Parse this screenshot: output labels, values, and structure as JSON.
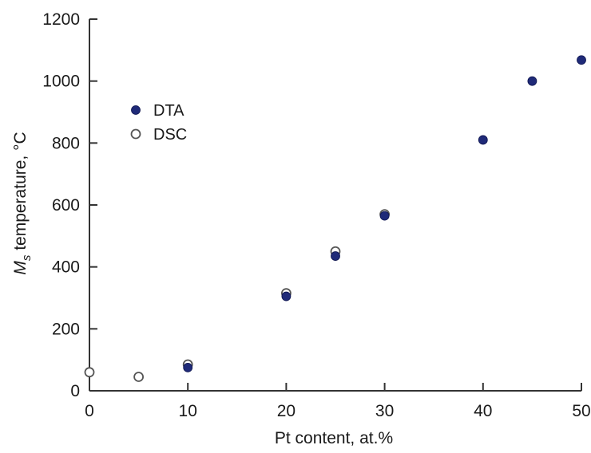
{
  "chart_data": {
    "type": "scatter",
    "title": "",
    "xlabel": "Pt content, at.%",
    "ylabel": {
      "symbol": "M",
      "subscript": "s",
      "rest": " temperature, °C"
    },
    "xlim": [
      0,
      50
    ],
    "ylim": [
      0,
      1200
    ],
    "xticks": [
      "0",
      "10",
      "20",
      "30",
      "40",
      "50"
    ],
    "yticks": [
      "0",
      "200",
      "400",
      "600",
      "800",
      "1000",
      "1200"
    ],
    "grid": false,
    "legend_position": "upper-left",
    "series": [
      {
        "name": "DSC",
        "marker": "open-circle",
        "color": "#555555",
        "x": [
          0,
          5,
          10,
          20,
          25,
          30
        ],
        "y": [
          60,
          45,
          85,
          315,
          450,
          570
        ]
      },
      {
        "name": "DTA",
        "marker": "filled-circle",
        "color": "#1f2a78",
        "x": [
          10,
          20,
          25,
          30,
          40,
          45,
          50
        ],
        "y": [
          75,
          305,
          435,
          565,
          810,
          1000,
          1068
        ]
      }
    ],
    "legend_order": [
      "DTA",
      "DSC"
    ]
  }
}
